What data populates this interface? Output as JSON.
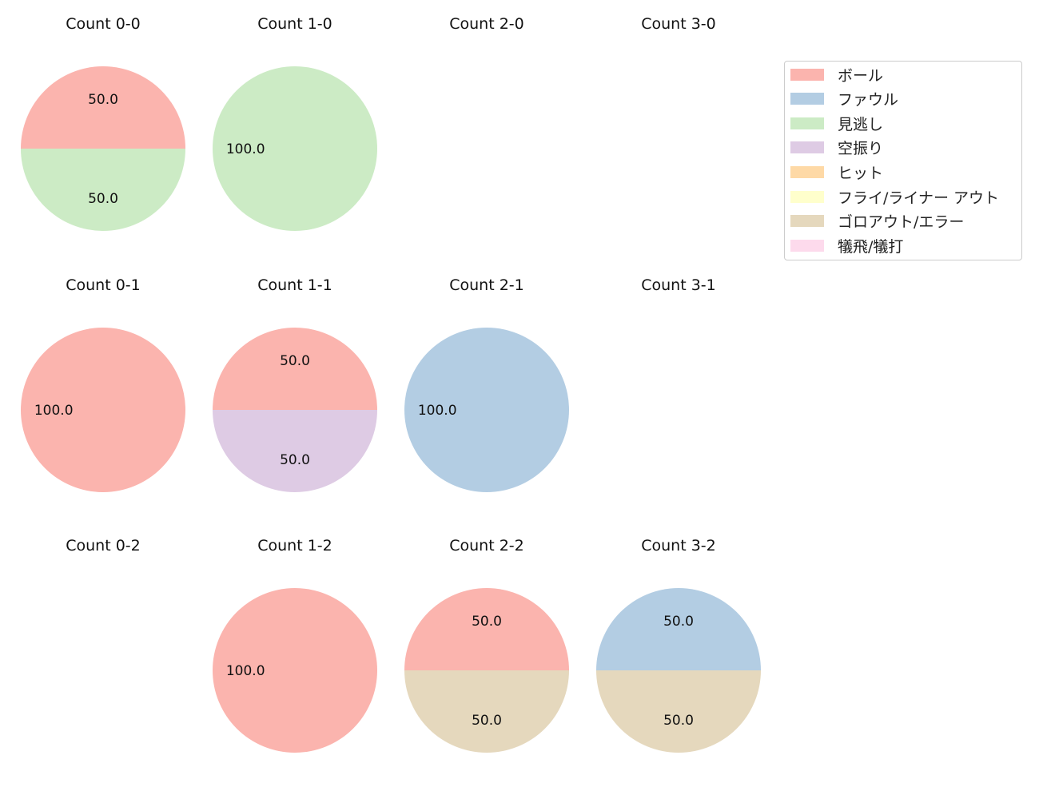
{
  "chart_data": {
    "type": "pie",
    "legend": {
      "placement": "top-right",
      "entries": [
        {
          "label": "ボール",
          "color": "#fbb4ae"
        },
        {
          "label": "ファウル",
          "color": "#b3cde3"
        },
        {
          "label": "見逃し",
          "color": "#ccebc5"
        },
        {
          "label": "空振り",
          "color": "#decbe4"
        },
        {
          "label": "ヒット",
          "color": "#fed9a6"
        },
        {
          "label": "フライ/ライナー アウト",
          "color": "#ffffcc"
        },
        {
          "label": "ゴロアウト/エラー",
          "color": "#e5d8bd"
        },
        {
          "label": "犠飛/犠打",
          "color": "#fddaec"
        }
      ]
    },
    "panels": [
      {
        "title": "Count 0-0",
        "slices": [
          {
            "label": "ボール",
            "value": 50.0,
            "display": "50.0"
          },
          {
            "label": "見逃し",
            "value": 50.0,
            "display": "50.0"
          }
        ]
      },
      {
        "title": "Count 1-0",
        "slices": [
          {
            "label": "見逃し",
            "value": 100.0,
            "display": "100.0"
          }
        ]
      },
      {
        "title": "Count 2-0",
        "slices": []
      },
      {
        "title": "Count 3-0",
        "slices": []
      },
      {
        "title": "Count 0-1",
        "slices": [
          {
            "label": "ボール",
            "value": 100.0,
            "display": "100.0"
          }
        ]
      },
      {
        "title": "Count 1-1",
        "slices": [
          {
            "label": "ボール",
            "value": 50.0,
            "display": "50.0"
          },
          {
            "label": "空振り",
            "value": 50.0,
            "display": "50.0"
          }
        ]
      },
      {
        "title": "Count 2-1",
        "slices": [
          {
            "label": "ファウル",
            "value": 100.0,
            "display": "100.0"
          }
        ]
      },
      {
        "title": "Count 3-1",
        "slices": []
      },
      {
        "title": "Count 0-2",
        "slices": []
      },
      {
        "title": "Count 1-2",
        "slices": [
          {
            "label": "ボール",
            "value": 100.0,
            "display": "100.0"
          }
        ]
      },
      {
        "title": "Count 2-2",
        "slices": [
          {
            "label": "ボール",
            "value": 50.0,
            "display": "50.0"
          },
          {
            "label": "ゴロアウト/エラー",
            "value": 50.0,
            "display": "50.0"
          }
        ]
      },
      {
        "title": "Count 3-2",
        "slices": [
          {
            "label": "ファウル",
            "value": 50.0,
            "display": "50.0"
          },
          {
            "label": "ゴロアウト/エラー",
            "value": 50.0,
            "display": "50.0"
          }
        ]
      }
    ]
  }
}
